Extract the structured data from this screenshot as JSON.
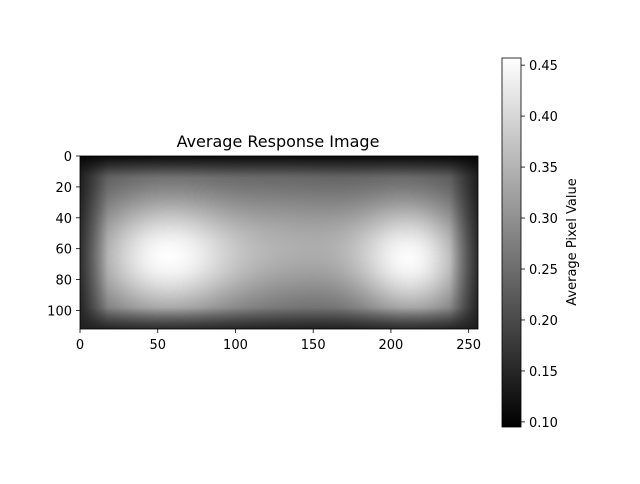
{
  "chart_data": {
    "type": "heatmap",
    "title": "Average Response Image",
    "xlabel": "",
    "ylabel": "",
    "xlim": [
      0,
      256
    ],
    "ylim": [
      112,
      0
    ],
    "x_ticks": [
      0,
      50,
      100,
      150,
      200,
      250
    ],
    "y_ticks": [
      0,
      20,
      40,
      60,
      80,
      100
    ],
    "colormap": "gray",
    "colorbar": {
      "label": "Average Pixel Value",
      "range": [
        0.095,
        0.457
      ],
      "ticks": [
        "0.10",
        "0.15",
        "0.20",
        "0.25",
        "0.30",
        "0.35",
        "0.40",
        "0.45"
      ]
    },
    "grid": false,
    "features": [
      {
        "x": 55,
        "y": 65,
        "peak_value": 0.45
      },
      {
        "x": 215,
        "y": 67,
        "peak_value": 0.43
      },
      {
        "x": 160,
        "y": 58,
        "peak_value": 0.29
      },
      {
        "x": 125,
        "y": 15,
        "peak_value": 0.22
      }
    ]
  }
}
